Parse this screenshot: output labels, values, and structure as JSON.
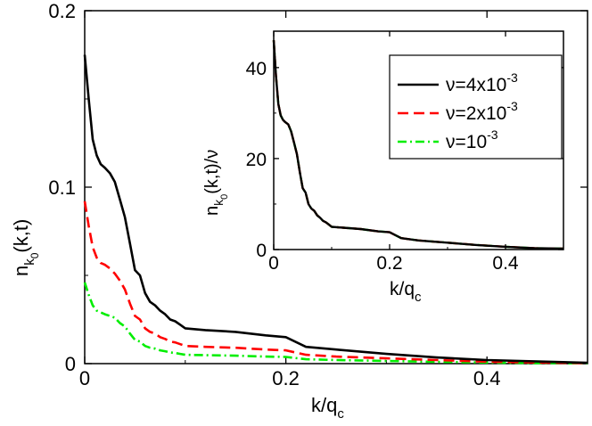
{
  "chart_data": [
    {
      "type": "line",
      "name": "main",
      "xlim": [
        0,
        0.5
      ],
      "ylim": [
        0,
        0.2
      ],
      "xticks": [
        0,
        0.2,
        0.4
      ],
      "xtick_labels": [
        "0",
        "0.2",
        "0.4"
      ],
      "yticks": [
        0,
        0.1,
        0.2
      ],
      "ytick_labels": [
        "0",
        "0.1",
        "0.2"
      ],
      "xlabel": {
        "main": "k/q",
        "sub": "c"
      },
      "ylabel": {
        "n": "n",
        "k": "k",
        "zero": "0",
        "args": "(k,t)"
      },
      "series": [
        {
          "name": "ν=4x10^-3",
          "color": "#000000",
          "dash": "solid",
          "x": [
            0,
            0.004,
            0.008,
            0.012,
            0.016,
            0.02,
            0.025,
            0.03,
            0.035,
            0.04,
            0.045,
            0.05,
            0.055,
            0.06,
            0.065,
            0.07,
            0.075,
            0.08,
            0.085,
            0.09,
            0.095,
            0.1,
            0.12,
            0.15,
            0.18,
            0.2,
            0.22,
            0.25,
            0.3,
            0.35,
            0.4,
            0.45,
            0.5
          ],
          "y": [
            0.175,
            0.15,
            0.127,
            0.118,
            0.113,
            0.111,
            0.108,
            0.103,
            0.093,
            0.083,
            0.068,
            0.053,
            0.05,
            0.04,
            0.035,
            0.033,
            0.03,
            0.028,
            0.025,
            0.024,
            0.022,
            0.02,
            0.019,
            0.018,
            0.016,
            0.015,
            0.0095,
            0.008,
            0.0055,
            0.0035,
            0.002,
            0.0012,
            0.0005
          ]
        },
        {
          "name": "ν=2x10^-3",
          "color": "#ff0000",
          "dash": "dashed",
          "x": [
            0,
            0.004,
            0.008,
            0.012,
            0.016,
            0.02,
            0.025,
            0.03,
            0.035,
            0.04,
            0.045,
            0.05,
            0.055,
            0.06,
            0.065,
            0.07,
            0.075,
            0.08,
            0.085,
            0.09,
            0.095,
            0.1,
            0.12,
            0.15,
            0.18,
            0.2,
            0.22,
            0.25,
            0.3,
            0.35,
            0.4,
            0.45,
            0.5
          ],
          "y": [
            0.092,
            0.078,
            0.066,
            0.06,
            0.057,
            0.056,
            0.054,
            0.051,
            0.047,
            0.042,
            0.034,
            0.027,
            0.025,
            0.02,
            0.018,
            0.017,
            0.015,
            0.014,
            0.0125,
            0.012,
            0.011,
            0.01,
            0.0095,
            0.009,
            0.008,
            0.0075,
            0.005,
            0.004,
            0.003,
            0.002,
            0.0011,
            0.0006,
            0.0003
          ]
        },
        {
          "name": "ν=10^-3",
          "color": "#00ee00",
          "dash": "dashdot",
          "x": [
            0,
            0.004,
            0.008,
            0.012,
            0.016,
            0.02,
            0.025,
            0.03,
            0.035,
            0.04,
            0.045,
            0.05,
            0.055,
            0.06,
            0.065,
            0.07,
            0.075,
            0.08,
            0.085,
            0.09,
            0.095,
            0.1,
            0.12,
            0.15,
            0.18,
            0.2,
            0.22,
            0.25,
            0.3,
            0.35,
            0.4,
            0.45,
            0.5
          ],
          "y": [
            0.046,
            0.039,
            0.033,
            0.03,
            0.029,
            0.028,
            0.027,
            0.026,
            0.023,
            0.021,
            0.017,
            0.0135,
            0.0125,
            0.01,
            0.009,
            0.0085,
            0.0075,
            0.007,
            0.0063,
            0.006,
            0.0055,
            0.005,
            0.0048,
            0.0045,
            0.004,
            0.0038,
            0.0025,
            0.002,
            0.0015,
            0.001,
            0.0006,
            0.0003,
            0.0002
          ]
        }
      ]
    },
    {
      "type": "line",
      "name": "inset",
      "xlim": [
        0,
        0.5
      ],
      "ylim": [
        0,
        48
      ],
      "xticks": [
        0,
        0.2,
        0.4
      ],
      "xtick_labels": [
        "0",
        "0.2",
        "0.4"
      ],
      "yticks": [
        0,
        20,
        40
      ],
      "ytick_labels": [
        "0",
        "20",
        "40"
      ],
      "xlabel": {
        "main": "k/q",
        "sub": "c"
      },
      "ylabel": {
        "n": "n",
        "k": "k",
        "zero": "0",
        "args": "(k,t)/ν"
      },
      "series": [
        {
          "name": "ν=4x10^-3",
          "color": "#000000",
          "dash": "solid",
          "x": [
            0,
            0.004,
            0.008,
            0.012,
            0.016,
            0.02,
            0.025,
            0.03,
            0.035,
            0.04,
            0.045,
            0.05,
            0.055,
            0.06,
            0.065,
            0.07,
            0.075,
            0.08,
            0.085,
            0.09,
            0.095,
            0.1,
            0.12,
            0.15,
            0.18,
            0.2,
            0.22,
            0.25,
            0.3,
            0.35,
            0.4,
            0.45,
            0.5
          ],
          "y": [
            46,
            38,
            32,
            29.5,
            28.5,
            28,
            27.5,
            26,
            23.5,
            21,
            17,
            13.5,
            12.5,
            10,
            9,
            8.5,
            7.5,
            7,
            6.3,
            6,
            5.5,
            5,
            4.8,
            4.5,
            4,
            3.8,
            2.5,
            2,
            1.5,
            1,
            0.6,
            0.3,
            0.2
          ]
        },
        {
          "name": "ν=2x10^-3",
          "color": "#ff0000",
          "dash": "dashed",
          "x": [
            0,
            0.004,
            0.008,
            0.012,
            0.016,
            0.02,
            0.025,
            0.03,
            0.035,
            0.04,
            0.045,
            0.05,
            0.055,
            0.06,
            0.065,
            0.07,
            0.075,
            0.08,
            0.085,
            0.09,
            0.095,
            0.1,
            0.12,
            0.15,
            0.18,
            0.2,
            0.22,
            0.25,
            0.3,
            0.35,
            0.4,
            0.45,
            0.5
          ],
          "y": [
            46,
            38,
            32,
            29.5,
            28.5,
            28,
            27.5,
            26,
            23.5,
            21,
            17,
            13.5,
            12.5,
            10,
            9,
            8.5,
            7.5,
            7,
            6.3,
            6,
            5.5,
            5,
            4.8,
            4.5,
            4,
            3.8,
            2.5,
            2,
            1.5,
            1,
            0.6,
            0.3,
            0.2
          ]
        },
        {
          "name": "ν=10^-3",
          "color": "#00ee00",
          "dash": "dashdot",
          "x": [
            0,
            0.004,
            0.008,
            0.012,
            0.016,
            0.02,
            0.025,
            0.03,
            0.035,
            0.04,
            0.045,
            0.05,
            0.055,
            0.06,
            0.065,
            0.07,
            0.075,
            0.08,
            0.085,
            0.09,
            0.095,
            0.1,
            0.12,
            0.15,
            0.18,
            0.2,
            0.22,
            0.25,
            0.3,
            0.35,
            0.4,
            0.45,
            0.5
          ],
          "y": [
            46,
            38,
            32,
            29.5,
            28.5,
            28,
            27.5,
            26,
            23.5,
            21,
            17,
            13.5,
            12.5,
            10,
            9,
            8.5,
            7.5,
            7,
            6.3,
            6,
            5.5,
            5,
            4.8,
            4.5,
            4,
            3.8,
            2.5,
            2,
            1.5,
            1,
            0.6,
            0.3,
            0.2
          ]
        }
      ],
      "legend": {
        "placement": "top-right",
        "entries": [
          {
            "prefix": "ν=4x10",
            "exp": "-3"
          },
          {
            "prefix": "ν=2x10",
            "exp": "-3"
          },
          {
            "prefix": "ν=10",
            "exp": "-3"
          }
        ]
      }
    }
  ]
}
